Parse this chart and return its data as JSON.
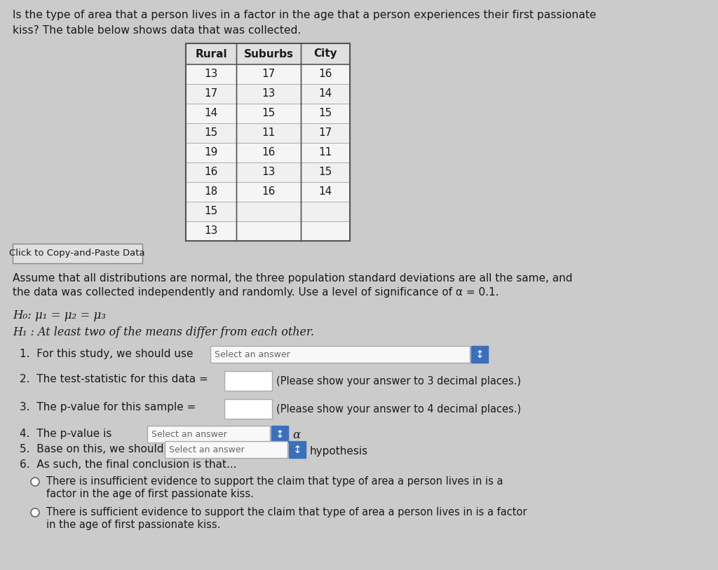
{
  "title_line1": "Is the type of area that a person lives in a factor in the age that a person experiences their first passionate",
  "title_line2": "kiss? The table below shows data that was collected.",
  "table_headers": [
    "Rural",
    "Suburbs",
    "City"
  ],
  "table_data": [
    [
      "13",
      "17",
      "16"
    ],
    [
      "17",
      "13",
      "14"
    ],
    [
      "14",
      "15",
      "15"
    ],
    [
      "15",
      "11",
      "17"
    ],
    [
      "19",
      "16",
      "11"
    ],
    [
      "16",
      "13",
      "15"
    ],
    [
      "18",
      "16",
      "14"
    ],
    [
      "15",
      "",
      ""
    ],
    [
      "13",
      "",
      ""
    ]
  ],
  "button_text": "Click to Copy-and-Paste Data",
  "assume_text": "Assume that all distributions are normal, the three population standard deviations are all the same, and",
  "assume_text2": "the data was collected independently and randomly. Use a level of significance of α = 0.1.",
  "h0_text": "H₀: μ₁ = μ₂ = μ₃",
  "h1_text": "H₁ : At least two of the means differ from each other.",
  "item1": "1.  For this study, we should use",
  "item2": "2.  The test-statistic for this data =",
  "item3": "3.  The p-value for this sample =",
  "item4": "4.  The p-value is",
  "item5": "5.  Base on this, we should",
  "item6": "6.  As such, the final conclusion is that...",
  "select_answer_text": "Select an answer",
  "alpha_text": "α",
  "hypothesis_text": "hypothesis",
  "decimal3_text": "(Please show your answer to 3 decimal places.)",
  "decimal4_text": "(Please show your answer to 4 decimal places.)",
  "conclusion1a": "There is insufficient evidence to support the claim that type of area a person lives in is a",
  "conclusion1b": "factor in the age of first passionate kiss.",
  "conclusion2a": "There is sufficient evidence to support the claim that type of area a person lives in is a factor",
  "conclusion2b": "in the age of first passionate kiss.",
  "bg_color": "#cbcbcb",
  "text_color": "#1a1a1a",
  "table_bg": "#f5f5f5",
  "table_header_bg": "#e0e0e0",
  "button_bg": "#e0e0e0",
  "input_box_color": "#ffffff",
  "select_box_color": "#f8f8f8",
  "blue_btn_color": "#3a6fbb",
  "grid_line_color": "#aaaaaa",
  "border_color": "#777777"
}
